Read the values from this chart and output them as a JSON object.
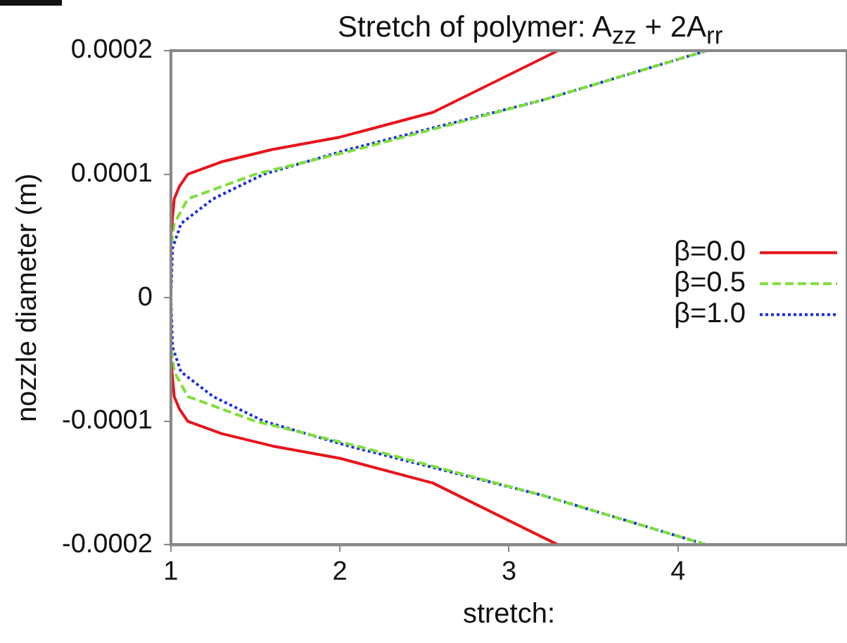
{
  "chart_data": {
    "type": "line",
    "title": "Stretch of polymer:  A$_{zz}$ + 2A$_{rr}$",
    "xlabel": "stretch:",
    "ylabel": "nozzle diameter (m)",
    "xlim": [
      1,
      5
    ],
    "xticks": [
      1,
      2,
      3,
      4
    ],
    "ylim": [
      -0.0002,
      0.0002
    ],
    "yticks": [
      -0.0002,
      -0.0001,
      0,
      0.0001,
      0.0002
    ],
    "grid": false,
    "legend": "right",
    "marker": "none",
    "series": [
      {
        "name": "β=0.0",
        "color": "#e8141c",
        "line_style": "solid",
        "x": [
          3.29,
          2.55,
          2.0,
          1.6,
          1.3,
          1.1,
          1.05,
          1.02,
          1.0,
          1.0,
          1.02,
          1.05,
          1.1,
          1.3,
          1.6,
          2.0,
          2.55,
          3.29
        ],
        "values": [
          -0.0002,
          -0.00015,
          -0.00013,
          -0.00012,
          -0.00011,
          -0.0001,
          -9e-05,
          -8e-05,
          -5e-05,
          5e-05,
          8e-05,
          9e-05,
          0.0001,
          0.00011,
          0.00012,
          0.00013,
          0.00015,
          0.0002
        ]
      },
      {
        "name": "β=0.5",
        "color": "#7ee03a",
        "line_style": "dashed",
        "x": [
          4.17,
          3.2,
          2.1,
          1.5,
          1.1,
          1.02,
          1.0,
          1.0,
          1.02,
          1.1,
          1.5,
          2.1,
          3.2,
          4.17
        ],
        "values": [
          -0.0002,
          -0.00016,
          -0.00012,
          -0.0001,
          -8e-05,
          -6e-05,
          -4e-05,
          4e-05,
          6e-05,
          8e-05,
          0.0001,
          0.00012,
          0.00016,
          0.0002
        ]
      },
      {
        "name": "β=1.0",
        "color": "#1a2fe0",
        "line_style": "dotted",
        "x": [
          4.17,
          3.2,
          2.05,
          1.55,
          1.25,
          1.06,
          1.01,
          1.0,
          1.01,
          1.06,
          1.25,
          1.55,
          2.05,
          3.2,
          4.17
        ],
        "values": [
          -0.0002,
          -0.00016,
          -0.00012,
          -0.0001,
          -8e-05,
          -6e-05,
          -4e-05,
          0,
          4e-05,
          6e-05,
          8e-05,
          0.0001,
          0.00012,
          0.00016,
          0.0002
        ]
      }
    ]
  }
}
